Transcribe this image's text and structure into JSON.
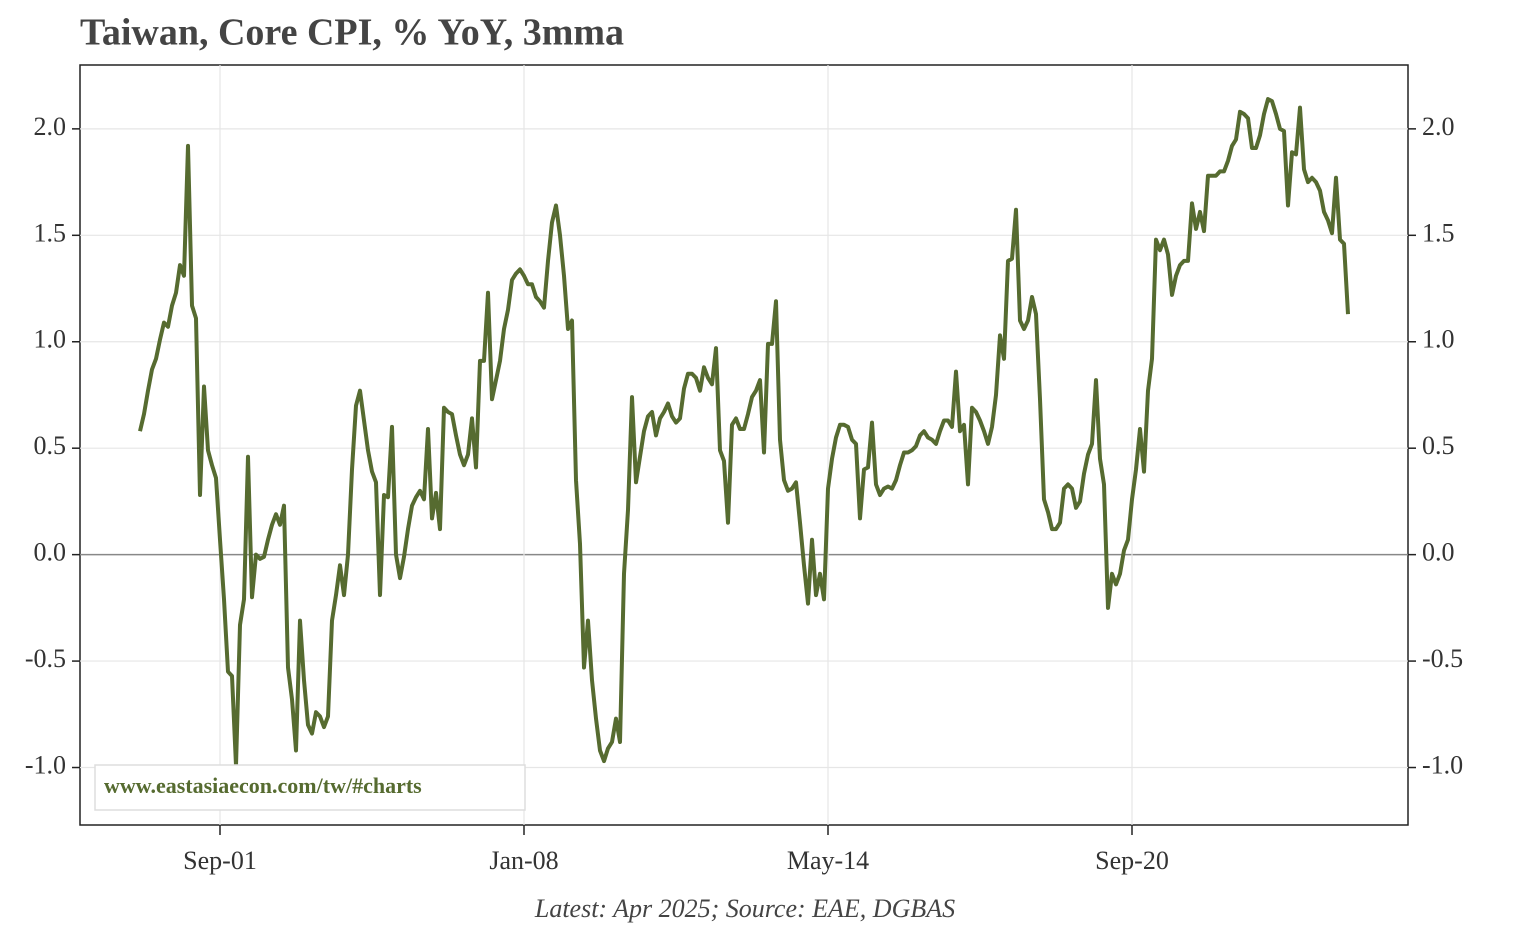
{
  "chart_data": {
    "type": "line",
    "title": "Taiwan, Core CPI, % YoY, 3mma",
    "source": "Latest: Apr 2025; Source: EAE, DGBAS",
    "watermark": "www.eastasiaecon.com/tw/#charts",
    "color": "#566b30",
    "grid": true,
    "xlim": [
      "Oct-98",
      "Jun-26"
    ],
    "xticks": [
      "Sep-01",
      "Jan-08",
      "May-14",
      "Sep-20"
    ],
    "ylim": [
      -1.27,
      2.3
    ],
    "yticks": [
      {
        "value": -1,
        "label": "-1.0"
      },
      {
        "value": -0.5,
        "label": "-0.5"
      },
      {
        "value": 0,
        "label": "0.0"
      },
      {
        "value": 0.5,
        "label": "0.5"
      },
      {
        "value": 1,
        "label": "1.0"
      },
      {
        "value": 1.5,
        "label": "1.5"
      },
      {
        "value": 2,
        "label": "2.0"
      }
    ],
    "x": [
      "Jan-00",
      "Feb-00",
      "Mar-00",
      "Apr-00",
      "May-00",
      "Jun-00",
      "Jul-00",
      "Aug-00",
      "Sep-00",
      "Oct-00",
      "Nov-00",
      "Dec-00",
      "Jan-01",
      "Feb-01",
      "Mar-01",
      "Apr-01",
      "May-01",
      "Jun-01",
      "Jul-01",
      "Aug-01",
      "Sep-01",
      "Oct-01",
      "Nov-01",
      "Dec-01",
      "Jan-02",
      "Feb-02",
      "Mar-02",
      "Apr-02",
      "May-02",
      "Jun-02",
      "Jul-02",
      "Aug-02",
      "Sep-02",
      "Oct-02",
      "Nov-02",
      "Dec-02",
      "Jan-03",
      "Feb-03",
      "Mar-03",
      "Apr-03",
      "May-03",
      "Jun-03",
      "Jul-03",
      "Aug-03",
      "Sep-03",
      "Oct-03",
      "Nov-03",
      "Dec-03",
      "Jan-04",
      "Feb-04",
      "Mar-04",
      "Apr-04",
      "May-04",
      "Jun-04",
      "Jul-04",
      "Aug-04",
      "Sep-04",
      "Oct-04",
      "Nov-04",
      "Dec-04",
      "Jan-05",
      "Feb-05",
      "Mar-05",
      "Apr-05",
      "May-05",
      "Jun-05",
      "Jul-05",
      "Aug-05",
      "Sep-05",
      "Oct-05",
      "Nov-05",
      "Dec-05",
      "Jan-06",
      "Feb-06",
      "Mar-06",
      "Apr-06",
      "May-06",
      "Jun-06",
      "Jul-06",
      "Aug-06",
      "Sep-06",
      "Oct-06",
      "Nov-06",
      "Dec-06",
      "Jan-07",
      "Feb-07",
      "Mar-07",
      "Apr-07",
      "May-07",
      "Jun-07",
      "Jul-07",
      "Aug-07",
      "Sep-07",
      "Oct-07",
      "Nov-07",
      "Dec-07",
      "Jan-08",
      "Feb-08",
      "Mar-08",
      "Apr-08",
      "May-08",
      "Jun-08",
      "Jul-08",
      "Aug-08",
      "Sep-08",
      "Oct-08",
      "Nov-08",
      "Dec-08",
      "Jan-09",
      "Feb-09",
      "Mar-09",
      "Apr-09",
      "May-09",
      "Jun-09",
      "Jul-09",
      "Aug-09",
      "Sep-09",
      "Oct-09",
      "Nov-09",
      "Dec-09",
      "Jan-10",
      "Feb-10",
      "Mar-10",
      "Apr-10",
      "May-10",
      "Jun-10",
      "Jul-10",
      "Aug-10",
      "Sep-10",
      "Oct-10",
      "Nov-10",
      "Dec-10",
      "Jan-11",
      "Feb-11",
      "Mar-11",
      "Apr-11",
      "May-11",
      "Jun-11",
      "Jul-11",
      "Aug-11",
      "Sep-11",
      "Oct-11",
      "Nov-11",
      "Dec-11",
      "Jan-12",
      "Feb-12",
      "Mar-12",
      "Apr-12",
      "May-12",
      "Jun-12",
      "Jul-12",
      "Aug-12",
      "Sep-12",
      "Oct-12",
      "Nov-12",
      "Dec-12",
      "Jan-13",
      "Feb-13",
      "Mar-13",
      "Apr-13",
      "May-13",
      "Jun-13",
      "Jul-13",
      "Aug-13",
      "Sep-13",
      "Oct-13",
      "Nov-13",
      "Dec-13",
      "Jan-14",
      "Feb-14",
      "Mar-14",
      "Apr-14",
      "May-14",
      "Jun-14",
      "Jul-14",
      "Aug-14",
      "Sep-14",
      "Oct-14",
      "Nov-14",
      "Dec-14",
      "Jan-15",
      "Feb-15",
      "Mar-15",
      "Apr-15",
      "May-15",
      "Jun-15",
      "Jul-15",
      "Aug-15",
      "Sep-15",
      "Oct-15",
      "Nov-15",
      "Dec-15",
      "Jan-16",
      "Feb-16",
      "Mar-16",
      "Apr-16",
      "May-16",
      "Jun-16",
      "Jul-16",
      "Aug-16",
      "Sep-16",
      "Oct-16",
      "Nov-16",
      "Dec-16",
      "Jan-17",
      "Feb-17",
      "Mar-17",
      "Apr-17",
      "May-17",
      "Jun-17",
      "Jul-17",
      "Aug-17",
      "Sep-17",
      "Oct-17",
      "Nov-17",
      "Dec-17",
      "Jan-18",
      "Feb-18",
      "Mar-18",
      "Apr-18",
      "May-18",
      "Jun-18",
      "Jul-18",
      "Aug-18",
      "Sep-18",
      "Oct-18",
      "Nov-18",
      "Dec-18",
      "Jan-19",
      "Feb-19",
      "Mar-19",
      "Apr-19",
      "May-19",
      "Jun-19",
      "Jul-19",
      "Aug-19",
      "Sep-19",
      "Oct-19",
      "Nov-19",
      "Dec-19",
      "Jan-20",
      "Feb-20",
      "Mar-20",
      "Apr-20",
      "May-20",
      "Jun-20",
      "Jul-20",
      "Aug-20",
      "Sep-20",
      "Oct-20",
      "Nov-20",
      "Dec-20",
      "Jan-21",
      "Feb-21",
      "Mar-21",
      "Apr-21",
      "May-21",
      "Jun-21",
      "Jul-21",
      "Aug-21",
      "Sep-21",
      "Oct-21",
      "Nov-21",
      "Dec-21",
      "Jan-22",
      "Feb-22",
      "Mar-22",
      "Apr-22",
      "May-22",
      "Jun-22",
      "Jul-22",
      "Aug-22",
      "Sep-22",
      "Oct-22",
      "Nov-22",
      "Dec-22",
      "Jan-23",
      "Feb-23",
      "Mar-23",
      "Apr-23",
      "May-23",
      "Jun-23",
      "Jul-23",
      "Aug-23",
      "Sep-23",
      "Oct-23",
      "Nov-23",
      "Dec-23",
      "Jan-24",
      "Feb-24",
      "Mar-24",
      "Apr-24",
      "May-24",
      "Jun-24",
      "Jul-24",
      "Aug-24",
      "Sep-24",
      "Oct-24",
      "Nov-24",
      "Dec-24",
      "Jan-25",
      "Feb-25",
      "Mar-25"
    ],
    "values": [
      0.58,
      0.66,
      0.77,
      0.87,
      0.92,
      1.01,
      1.09,
      1.07,
      1.17,
      1.23,
      1.36,
      1.31,
      1.92,
      1.17,
      1.11,
      0.28,
      0.79,
      0.49,
      0.42,
      0.36,
      0.07,
      -0.21,
      -0.55,
      -0.57,
      -0.99,
      -0.33,
      -0.21,
      0.46,
      -0.2,
      0.0,
      -0.02,
      -0.01,
      0.07,
      0.14,
      0.19,
      0.14,
      0.23,
      -0.53,
      -0.68,
      -0.92,
      -0.31,
      -0.59,
      -0.8,
      -0.84,
      -0.74,
      -0.76,
      -0.81,
      -0.76,
      -0.31,
      -0.19,
      -0.05,
      -0.19,
      0.0,
      0.4,
      0.7,
      0.77,
      0.63,
      0.49,
      0.39,
      0.34,
      -0.19,
      0.28,
      0.27,
      0.6,
      0.0,
      -0.11,
      -0.01,
      0.12,
      0.23,
      0.27,
      0.3,
      0.26,
      0.59,
      0.17,
      0.29,
      0.12,
      0.69,
      0.67,
      0.66,
      0.56,
      0.47,
      0.42,
      0.47,
      0.64,
      0.41,
      0.91,
      0.91,
      1.23,
      0.73,
      0.82,
      0.91,
      1.06,
      1.15,
      1.29,
      1.32,
      1.34,
      1.31,
      1.27,
      1.27,
      1.21,
      1.19,
      1.16,
      1.38,
      1.56,
      1.64,
      1.5,
      1.31,
      1.06,
      1.1,
      0.35,
      0.05,
      -0.53,
      -0.31,
      -0.59,
      -0.77,
      -0.92,
      -0.97,
      -0.91,
      -0.88,
      -0.77,
      -0.88,
      -0.09,
      0.21,
      0.74,
      0.34,
      0.46,
      0.58,
      0.65,
      0.67,
      0.56,
      0.64,
      0.67,
      0.71,
      0.65,
      0.62,
      0.64,
      0.78,
      0.85,
      0.85,
      0.83,
      0.77,
      0.88,
      0.83,
      0.8,
      0.97,
      0.49,
      0.44,
      0.15,
      0.61,
      0.64,
      0.59,
      0.59,
      0.66,
      0.74,
      0.77,
      0.82,
      0.48,
      0.99,
      0.99,
      1.19,
      0.54,
      0.35,
      0.3,
      0.31,
      0.34,
      0.15,
      -0.05,
      -0.23,
      0.07,
      -0.19,
      -0.09,
      -0.21,
      0.31,
      0.45,
      0.55,
      0.61,
      0.61,
      0.6,
      0.54,
      0.52,
      0.17,
      0.4,
      0.41,
      0.62,
      0.33,
      0.28,
      0.31,
      0.32,
      0.31,
      0.35,
      0.42,
      0.48,
      0.48,
      0.49,
      0.51,
      0.56,
      0.58,
      0.55,
      0.54,
      0.52,
      0.58,
      0.63,
      0.63,
      0.6,
      0.86,
      0.58,
      0.61,
      0.33,
      0.69,
      0.67,
      0.63,
      0.58,
      0.52,
      0.6,
      0.75,
      1.03,
      0.92,
      1.38,
      1.39,
      1.62,
      1.1,
      1.06,
      1.1,
      1.21,
      1.13,
      0.73,
      0.26,
      0.2,
      0.12,
      0.12,
      0.15,
      0.31,
      0.33,
      0.31,
      0.22,
      0.25,
      0.38,
      0.47,
      0.52,
      0.82,
      0.45,
      0.33,
      -0.25,
      -0.09,
      -0.14,
      -0.09,
      0.02,
      0.07,
      0.26,
      0.4,
      0.59,
      0.39,
      0.77,
      0.92,
      1.48,
      1.43,
      1.48,
      1.41,
      1.22,
      1.31,
      1.36,
      1.38,
      1.38,
      1.65,
      1.53,
      1.61,
      1.52,
      1.78,
      1.78,
      1.78,
      1.8,
      1.8,
      1.85,
      1.92,
      1.95,
      2.08,
      2.07,
      2.05,
      1.91,
      1.91,
      1.97,
      2.07,
      2.14,
      2.13,
      2.07,
      2.0,
      1.99,
      1.64,
      1.89,
      1.88,
      2.1,
      1.81,
      1.75,
      1.77,
      1.75,
      1.71,
      1.61,
      1.57,
      1.51,
      1.77,
      1.48,
      1.46,
      1.13
    ]
  }
}
